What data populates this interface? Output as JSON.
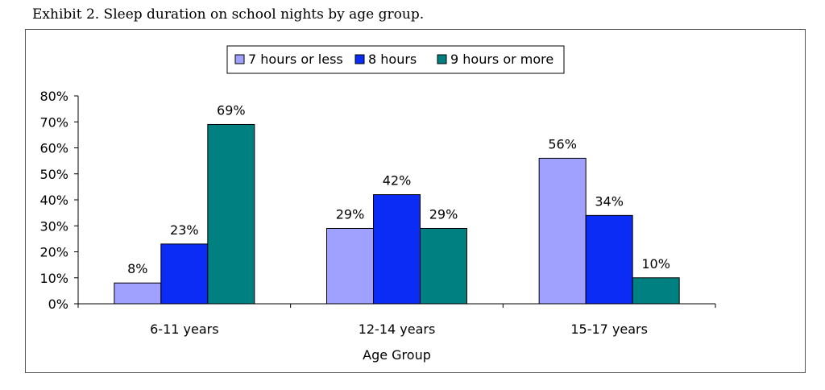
{
  "exhibit_title": "Exhibit 2.  Sleep duration on school nights by age group.",
  "chart_data": {
    "type": "bar",
    "categories": [
      "6-11 years",
      "12-14 years",
      "15-17 years"
    ],
    "series": [
      {
        "name": "7 hours or less",
        "color": "#a0a0ff",
        "values": [
          8,
          29,
          56
        ],
        "labels": [
          "8%",
          "29%",
          "56%"
        ]
      },
      {
        "name": "8 hours",
        "color": "#0a2cf5",
        "values": [
          23,
          42,
          34
        ],
        "labels": [
          "23%",
          "42%",
          "34%"
        ]
      },
      {
        "name": "9 hours or more",
        "color": "#008080",
        "values": [
          69,
          29,
          10
        ],
        "labels": [
          "69%",
          "29%",
          "10%"
        ]
      }
    ],
    "xlabel": "Age Group",
    "ylabel": "",
    "ylim": [
      0,
      80
    ],
    "yticks": [
      0,
      10,
      20,
      30,
      40,
      50,
      60,
      70,
      80
    ],
    "ytick_labels": [
      "0%",
      "10%",
      "20%",
      "30%",
      "40%",
      "50%",
      "60%",
      "70%",
      "80%"
    ],
    "grid": false,
    "legend_position": "top-center"
  }
}
